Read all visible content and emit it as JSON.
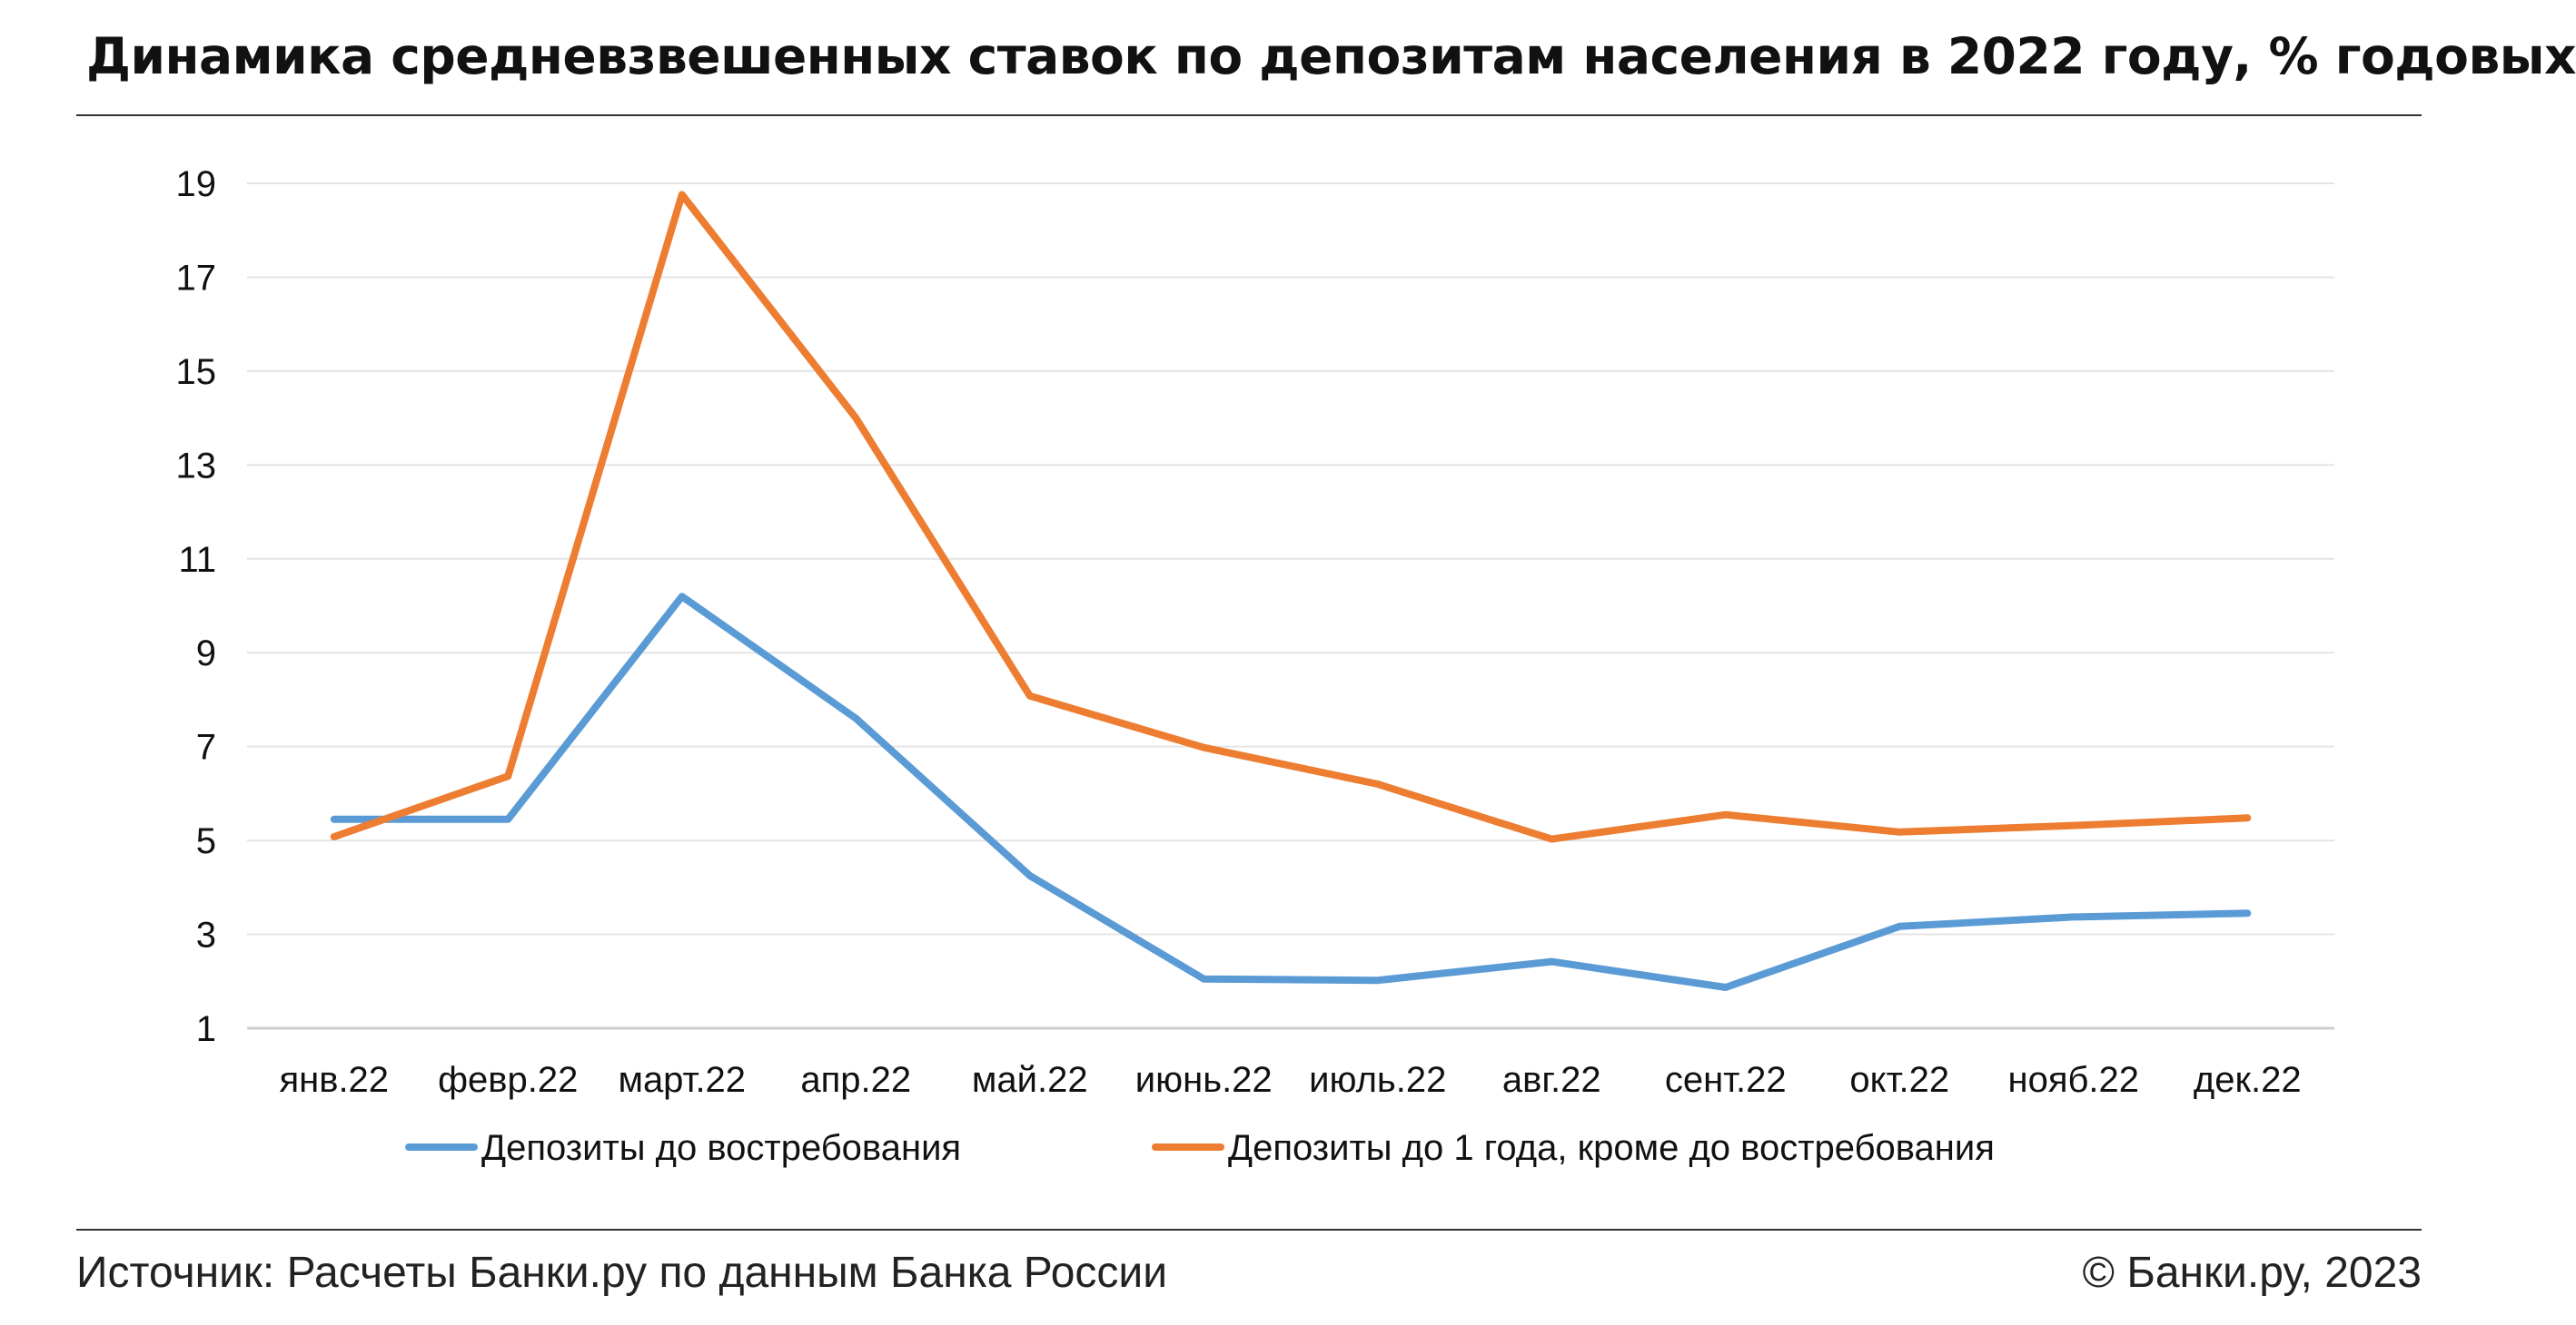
{
  "title": "Динамика средневзвешенных ставок по депозитам населения в 2022 году, % годовых",
  "source": "Источник: Расчеты Банки.ру по данным Банка России",
  "copyright": "© Банки.ру, 2023",
  "chart_data": {
    "type": "line",
    "categories": [
      "янв.22",
      "февр.22",
      "март.22",
      "апр.22",
      "май.22",
      "июнь.22",
      "июль.22",
      "авг.22",
      "сент.22",
      "окт.22",
      "нояб.22",
      "дек.22"
    ],
    "series": [
      {
        "name": "Депозиты до востребования",
        "color": "#5B9BD5",
        "values": [
          5.45,
          5.45,
          10.2,
          7.6,
          4.25,
          2.05,
          2.02,
          2.42,
          1.87,
          3.17,
          3.37,
          3.45
        ]
      },
      {
        "name": "Депозиты до 1 года, кроме до востребования",
        "color": "#ED7D31",
        "values": [
          5.08,
          6.37,
          18.76,
          14.0,
          8.08,
          6.98,
          6.2,
          5.03,
          5.55,
          5.18,
          5.32,
          5.48
        ]
      }
    ],
    "yticks": [
      1,
      3,
      5,
      7,
      9,
      11,
      13,
      15,
      17,
      19
    ],
    "ylim": [
      1,
      19
    ],
    "grid": true,
    "legend": "bottom"
  }
}
